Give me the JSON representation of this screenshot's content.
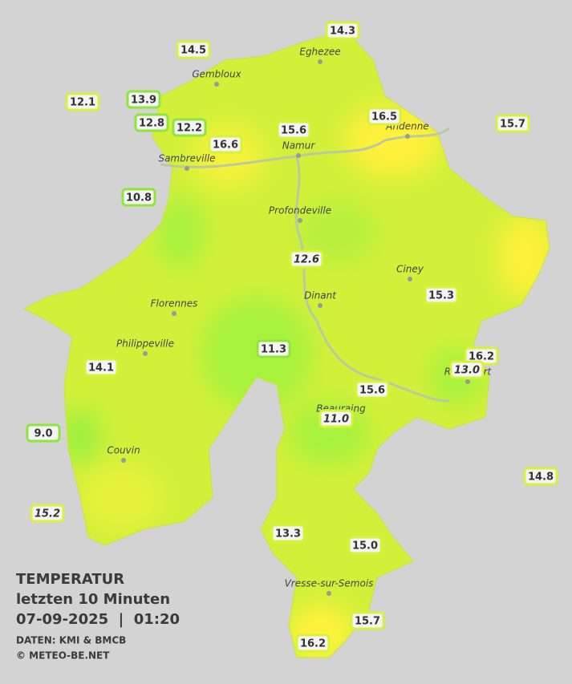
{
  "legend": {
    "title": "TEMPERATUR",
    "period": "letzten 10 Minuten",
    "datetime": "07-09-2025  |  01:20",
    "source": "DATEN: KMI & BMCB",
    "copyright": "© METEO-BE.NET"
  },
  "stations": [
    "14.3",
    "14.5",
    "12.1",
    "13.9",
    "12.8",
    "12.2",
    "16.6",
    "15.6",
    "16.5",
    "15.7",
    "10.8",
    "12.6",
    "15.3",
    "11.3",
    "16.2",
    "13.0",
    "14.1",
    "15.6",
    "11.0",
    "9.0",
    "14.8",
    "15.2",
    "13.3",
    "15.0",
    "15.7",
    "16.2"
  ],
  "cities": [
    "Eghezee",
    "Gembloux",
    "Andenne",
    "Namur",
    "Sambreville",
    "Profondeville",
    "Ciney",
    "Dinant",
    "Florennes",
    "Philippeville",
    "Rochefort",
    "Beauraing",
    "Couvin",
    "Vresse-sur-Semois"
  ]
}
